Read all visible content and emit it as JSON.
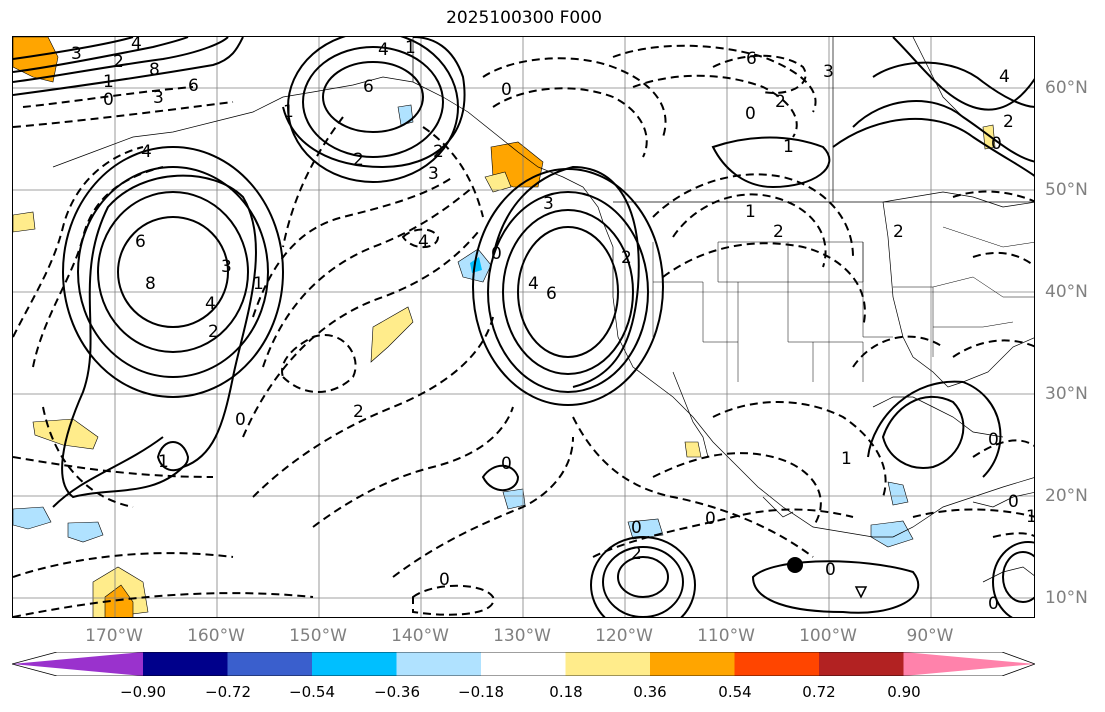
{
  "title": "2025100300 F000",
  "longitude_labels": [
    "170°W",
    "160°W",
    "150°W",
    "140°W",
    "130°W",
    "120°W",
    "110°W",
    "100°W",
    "90°W"
  ],
  "latitude_labels": [
    "60°N",
    "50°N",
    "40°N",
    "30°N",
    "20°N",
    "10°N"
  ],
  "contour_labels": [
    "3",
    "4",
    "8",
    "6",
    "1",
    "0",
    "2",
    "3",
    "1",
    "4",
    "6",
    "2",
    "1",
    "0",
    "2",
    "3",
    "4",
    "6",
    "4",
    "8",
    "1",
    "3",
    "2",
    "0",
    "2",
    "4",
    "1",
    "4",
    "6",
    "3",
    "2",
    "0",
    "6",
    "3",
    "0",
    "2",
    "1",
    "4",
    "2",
    "1",
    "2",
    "0",
    "0",
    "0",
    "0",
    "2",
    "0",
    "1",
    "0",
    "0",
    "0",
    "0",
    "1",
    "2"
  ],
  "colorbar": {
    "ticks": [
      "−0.90",
      "−0.72",
      "−0.54",
      "−0.36",
      "−0.18",
      "0.18",
      "0.36",
      "0.54",
      "0.72",
      "0.90"
    ],
    "colors": [
      "#9a32cd",
      "#00008b",
      "#3a5fcd",
      "#00bfff",
      "#b0e2ff",
      "#ffffff",
      "#ffec8b",
      "#ffa500",
      "#ff4500",
      "#b22222",
      "#ff82ab"
    ]
  },
  "marker": "black-dot"
}
